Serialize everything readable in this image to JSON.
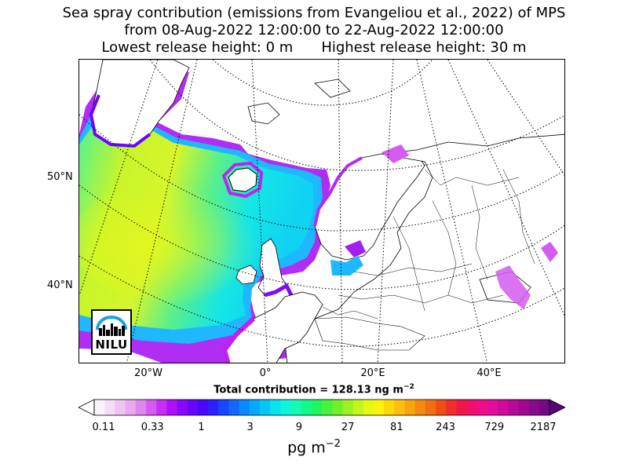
{
  "title": {
    "line1": "Sea spray contribution (emissions from Evangeliou et al., 2022) of MPS",
    "line2": "from 08-Aug-2022 12:00:00 to 22-Aug-2022 12:00:00",
    "line3_left": "Lowest release height: 0 m",
    "line3_right": "Highest release height: 30 m"
  },
  "map": {
    "lat_labels": [
      "50°N",
      "40°N"
    ],
    "lon_labels": [
      "20°W",
      "0°",
      "20°E",
      "40°E"
    ],
    "logo": "NILU"
  },
  "total_label": "Total contribution = 128.13 ng m",
  "total_exp": "−2",
  "colorbar": {
    "ticks": [
      "0.11",
      "0.33",
      "1",
      "3",
      "9",
      "27",
      "81",
      "243",
      "729",
      "2187"
    ],
    "unit_base": "pg m",
    "unit_exp": "−2",
    "colors": [
      "#fbf2fb",
      "#f6dcf6",
      "#f0c4f2",
      "#e8a9f0",
      "#df86f0",
      "#d45af0",
      "#c82ff4",
      "#ad10f8",
      "#8a07fb",
      "#6a05fd",
      "#4a07fe",
      "#2d20ff",
      "#1747ff",
      "#1267ff",
      "#0b88ff",
      "#08a8fc",
      "#06c6f6",
      "#08e3ee",
      "#0ff5db",
      "#16fab4",
      "#12f98a",
      "#1ef65e",
      "#45f23c",
      "#70ef2b",
      "#9af223",
      "#c2f61d",
      "#e4fa14",
      "#fbf20e",
      "#fdd80e",
      "#fcbf0e",
      "#f9a40f",
      "#f58a11",
      "#f16f13",
      "#ee4f16",
      "#ef2f2a",
      "#f0164a",
      "#f00f6c",
      "#ed0d8c",
      "#e10ca0",
      "#cf0a9e",
      "#b70997",
      "#a10891",
      "#8a088c",
      "#750685"
    ]
  }
}
